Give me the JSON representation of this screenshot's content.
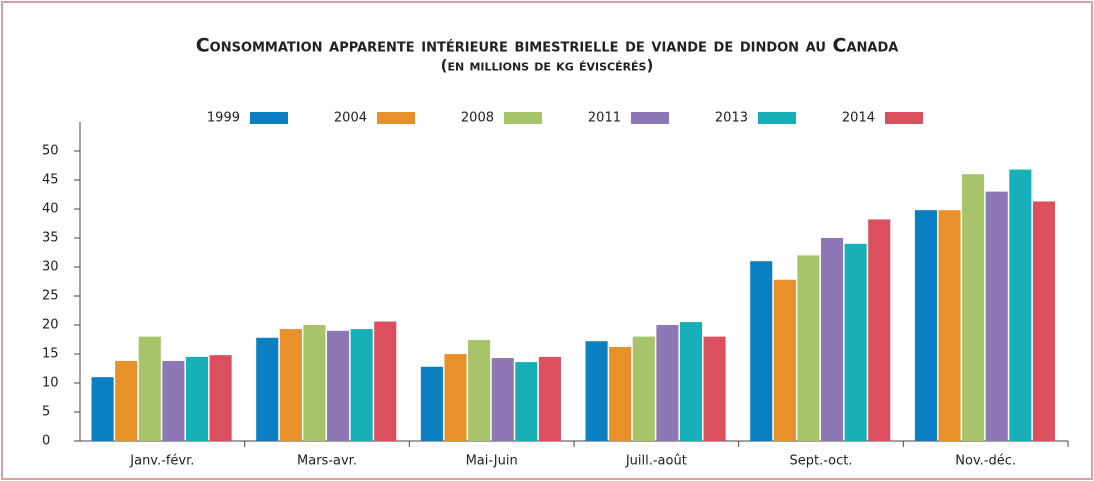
{
  "chart_data": {
    "type": "bar",
    "title": "Consommation apparente intérieure bimestrielle de viande de dindon au Canada",
    "subtitle": "(en millions de kg éviscérés)",
    "categories": [
      "Janv.-févr.",
      "Mars-avr.",
      "Mai-Juin",
      "Juill.-août",
      "Sept.-oct.",
      "Nov.-déc."
    ],
    "series": [
      {
        "name": "1999",
        "color": "#0a7fc1",
        "values": [
          11,
          17.8,
          12.8,
          17.2,
          31,
          39.8
        ]
      },
      {
        "name": "2004",
        "color": "#e8902a",
        "values": [
          13.8,
          19.3,
          15,
          16.2,
          27.8,
          39.8
        ]
      },
      {
        "name": "2008",
        "color": "#a8c46a",
        "values": [
          18,
          20,
          17.4,
          18,
          32,
          46
        ]
      },
      {
        "name": "2011",
        "color": "#8d78b5",
        "values": [
          13.8,
          19,
          14.3,
          20,
          35,
          43
        ]
      },
      {
        "name": "2013",
        "color": "#17afb8",
        "values": [
          14.5,
          19.3,
          13.6,
          20.5,
          34,
          46.8
        ]
      },
      {
        "name": "2014",
        "color": "#dc4f5e",
        "values": [
          14.8,
          20.6,
          14.5,
          18,
          38.2,
          41.3
        ]
      }
    ],
    "ylim": [
      0,
      55
    ],
    "yticks": [
      0,
      5,
      10,
      15,
      20,
      25,
      30,
      35,
      40,
      45,
      50
    ],
    "grid": false
  }
}
